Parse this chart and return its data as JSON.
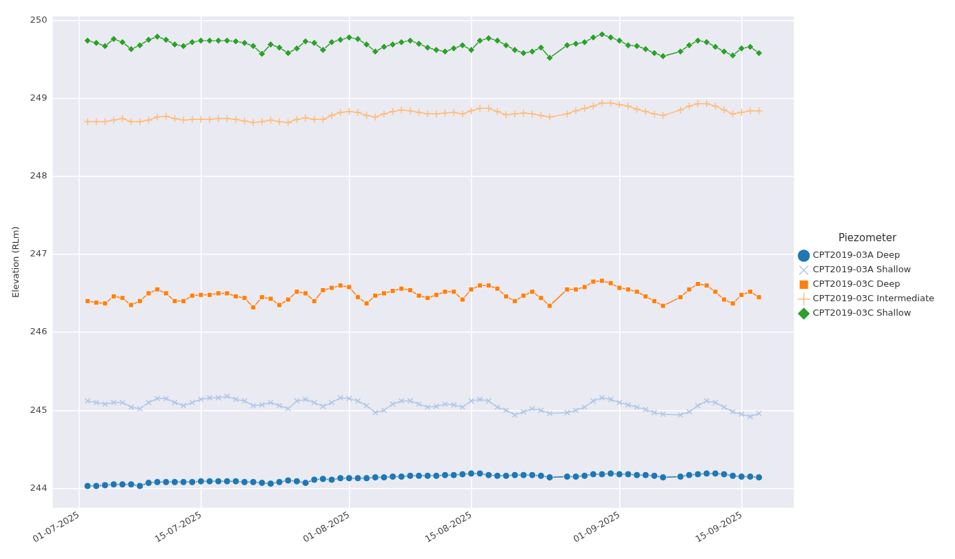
{
  "chart_data": {
    "type": "line",
    "ylabel": "Elevation (RLm)",
    "legend_title": "Piezometer",
    "legend": "right",
    "grid": true,
    "x": [
      "2025-07-02",
      "2025-07-03",
      "2025-07-04",
      "2025-07-05",
      "2025-07-06",
      "2025-07-07",
      "2025-07-08",
      "2025-07-09",
      "2025-07-10",
      "2025-07-11",
      "2025-07-12",
      "2025-07-13",
      "2025-07-14",
      "2025-07-15",
      "2025-07-16",
      "2025-07-17",
      "2025-07-18",
      "2025-07-19",
      "2025-07-20",
      "2025-07-21",
      "2025-07-22",
      "2025-07-23",
      "2025-07-24",
      "2025-07-25",
      "2025-07-26",
      "2025-07-27",
      "2025-07-28",
      "2025-07-29",
      "2025-07-30",
      "2025-07-31",
      "2025-08-01",
      "2025-08-02",
      "2025-08-03",
      "2025-08-04",
      "2025-08-05",
      "2025-08-06",
      "2025-08-07",
      "2025-08-08",
      "2025-08-09",
      "2025-08-10",
      "2025-08-11",
      "2025-08-12",
      "2025-08-13",
      "2025-08-14",
      "2025-08-15",
      "2025-08-16",
      "2025-08-17",
      "2025-08-18",
      "2025-08-19",
      "2025-08-20",
      "2025-08-21",
      "2025-08-22",
      "2025-08-23",
      "2025-08-24",
      "2025-08-26",
      "2025-08-27",
      "2025-08-28",
      "2025-08-29",
      "2025-08-30",
      "2025-08-31",
      "2025-09-01",
      "2025-09-02",
      "2025-09-03",
      "2025-09-04",
      "2025-09-05",
      "2025-09-06",
      "2025-09-08",
      "2025-09-09",
      "2025-09-10",
      "2025-09-11",
      "2025-09-12",
      "2025-09-13",
      "2025-09-14",
      "2025-09-15",
      "2025-09-16",
      "2025-09-17"
    ],
    "xlim": [
      "2025-06-28",
      "2025-09-21"
    ],
    "xticks": [
      {
        "value": "2025-07-01",
        "label": "01-07-2025"
      },
      {
        "value": "2025-07-15",
        "label": "15-07-2025"
      },
      {
        "value": "2025-08-01",
        "label": "01-08-2025"
      },
      {
        "value": "2025-08-15",
        "label": "15-08-2025"
      },
      {
        "value": "2025-09-01",
        "label": "01-09-2025"
      },
      {
        "value": "2025-09-15",
        "label": "15-09-2025"
      }
    ],
    "ylim": [
      243.75,
      250.05
    ],
    "yticks": [
      244,
      245,
      246,
      247,
      248,
      249,
      250
    ],
    "series": [
      {
        "name": "CPT2019-03A Deep",
        "color": "#1f77b4",
        "marker": "circle",
        "values": [
          244.03,
          244.03,
          244.04,
          244.05,
          244.05,
          244.05,
          244.03,
          244.07,
          244.08,
          244.08,
          244.08,
          244.08,
          244.08,
          244.09,
          244.09,
          244.09,
          244.09,
          244.09,
          244.08,
          244.08,
          244.07,
          244.06,
          244.08,
          244.1,
          244.09,
          244.07,
          244.11,
          244.12,
          244.11,
          244.13,
          244.13,
          244.13,
          244.13,
          244.14,
          244.14,
          244.15,
          244.15,
          244.16,
          244.16,
          244.16,
          244.16,
          244.17,
          244.17,
          244.18,
          244.19,
          244.19,
          244.17,
          244.16,
          244.16,
          244.17,
          244.17,
          244.17,
          244.16,
          244.14,
          244.15,
          244.15,
          244.16,
          244.18,
          244.18,
          244.19,
          244.18,
          244.18,
          244.17,
          244.17,
          244.16,
          244.14,
          244.15,
          244.17,
          244.18,
          244.19,
          244.19,
          244.18,
          244.16,
          244.15,
          244.15,
          244.14
        ]
      },
      {
        "name": "CPT2019-03A Shallow",
        "color": "#aec7e8",
        "marker": "cross",
        "values": [
          245.12,
          245.1,
          245.08,
          245.1,
          245.1,
          245.04,
          245.02,
          245.1,
          245.15,
          245.15,
          245.1,
          245.06,
          245.1,
          245.14,
          245.16,
          245.16,
          245.18,
          245.14,
          245.12,
          245.06,
          245.07,
          245.1,
          245.06,
          245.02,
          245.12,
          245.14,
          245.1,
          245.05,
          245.1,
          245.16,
          245.15,
          245.12,
          245.06,
          244.97,
          245.0,
          245.08,
          245.12,
          245.12,
          245.08,
          245.04,
          245.05,
          245.08,
          245.07,
          245.04,
          245.12,
          245.14,
          245.12,
          245.04,
          245.0,
          244.94,
          244.98,
          245.02,
          245.0,
          244.96,
          244.97,
          245.0,
          245.04,
          245.12,
          245.16,
          245.14,
          245.1,
          245.07,
          245.04,
          245.01,
          244.97,
          244.95,
          244.94,
          244.98,
          245.06,
          245.12,
          245.1,
          245.04,
          244.98,
          244.95,
          244.92,
          244.96
        ]
      },
      {
        "name": "CPT2019-03C Deep",
        "color": "#ff7f0e",
        "marker": "square",
        "values": [
          246.4,
          246.38,
          246.37,
          246.46,
          246.44,
          246.35,
          246.4,
          246.5,
          246.55,
          246.5,
          246.4,
          246.4,
          246.47,
          246.48,
          246.48,
          246.5,
          246.5,
          246.46,
          246.44,
          246.32,
          246.45,
          246.43,
          246.35,
          246.42,
          246.52,
          246.5,
          246.4,
          246.54,
          246.57,
          246.6,
          246.58,
          246.45,
          246.37,
          246.47,
          246.5,
          246.53,
          246.56,
          246.54,
          246.47,
          246.44,
          246.48,
          246.52,
          246.52,
          246.42,
          246.55,
          246.6,
          246.6,
          246.56,
          246.46,
          246.4,
          246.47,
          246.52,
          246.44,
          246.34,
          246.55,
          246.55,
          246.58,
          246.65,
          246.66,
          246.63,
          246.57,
          246.55,
          246.52,
          246.46,
          246.4,
          246.34,
          246.45,
          246.55,
          246.62,
          246.6,
          246.52,
          246.42,
          246.37,
          246.48,
          246.52,
          246.45
        ]
      },
      {
        "name": "CPT2019-03C Intermediate",
        "color": "#ffbb78",
        "marker": "plus",
        "values": [
          248.7,
          248.7,
          248.7,
          248.72,
          248.74,
          248.7,
          248.7,
          248.72,
          248.76,
          248.77,
          248.74,
          248.72,
          248.73,
          248.73,
          248.73,
          248.74,
          248.74,
          248.73,
          248.71,
          248.69,
          248.7,
          248.72,
          248.7,
          248.69,
          248.73,
          248.75,
          248.73,
          248.73,
          248.78,
          248.82,
          248.83,
          248.82,
          248.78,
          248.76,
          248.8,
          248.83,
          248.85,
          248.84,
          248.82,
          248.8,
          248.8,
          248.81,
          248.82,
          248.8,
          248.84,
          248.87,
          248.87,
          248.83,
          248.79,
          248.8,
          248.81,
          248.8,
          248.78,
          248.76,
          248.8,
          248.84,
          248.87,
          248.9,
          248.94,
          248.94,
          248.92,
          248.9,
          248.86,
          248.83,
          248.8,
          248.78,
          248.85,
          248.9,
          248.93,
          248.93,
          248.9,
          248.85,
          248.8,
          248.82,
          248.84,
          248.84
        ]
      },
      {
        "name": "CPT2019-03C Shallow",
        "color": "#2ca02c",
        "marker": "diamond",
        "values": [
          249.74,
          249.71,
          249.67,
          249.76,
          249.72,
          249.63,
          249.68,
          249.75,
          249.79,
          249.75,
          249.69,
          249.67,
          249.72,
          249.74,
          249.74,
          249.74,
          249.74,
          249.73,
          249.71,
          249.67,
          249.57,
          249.69,
          249.65,
          249.58,
          249.64,
          249.73,
          249.71,
          249.62,
          249.72,
          249.75,
          249.78,
          249.76,
          249.69,
          249.6,
          249.66,
          249.69,
          249.72,
          249.74,
          249.7,
          249.65,
          249.62,
          249.6,
          249.64,
          249.68,
          249.62,
          249.74,
          249.77,
          249.74,
          249.68,
          249.62,
          249.58,
          249.6,
          249.65,
          249.52,
          249.68,
          249.7,
          249.72,
          249.78,
          249.82,
          249.78,
          249.74,
          249.68,
          249.67,
          249.63,
          249.58,
          249.54,
          249.6,
          249.68,
          249.74,
          249.72,
          249.66,
          249.6,
          249.55,
          249.64,
          249.66,
          249.58
        ]
      }
    ]
  }
}
